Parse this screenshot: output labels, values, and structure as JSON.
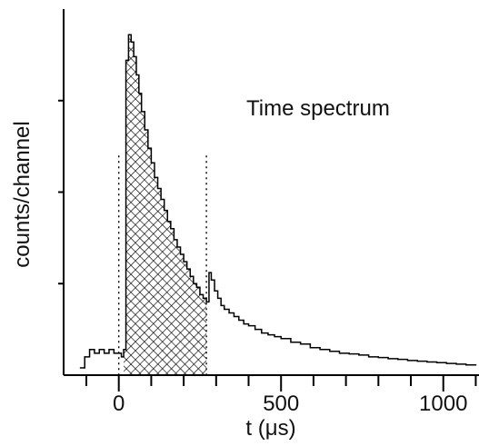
{
  "chart_data": {
    "type": "line",
    "title": "Time spectrum",
    "xlabel": "t (μs)",
    "ylabel": "counts/channel",
    "xlim": [
      -170,
      1110
    ],
    "ylim": [
      0,
      1.0
    ],
    "x_ticks": [
      0,
      500,
      1000
    ],
    "x_tick_labels": [
      "0",
      "500",
      "1000"
    ],
    "y_ticks": [
      0.25,
      0.5,
      0.75
    ],
    "y_tick_labels": [
      "",
      "",
      ""
    ],
    "gate_lines": [
      0,
      270
    ],
    "hatched_region": [
      15,
      270
    ],
    "series": [
      {
        "points": [
          [
            -120,
            0.02
          ],
          [
            -105,
            0.05
          ],
          [
            -90,
            0.07
          ],
          [
            -75,
            0.06
          ],
          [
            -60,
            0.07
          ],
          [
            -45,
            0.06
          ],
          [
            -30,
            0.07
          ],
          [
            -15,
            0.06
          ],
          [
            0,
            0.06
          ],
          [
            8,
            0.05
          ],
          [
            15,
            0.07
          ],
          [
            22,
            0.86
          ],
          [
            30,
            0.93
          ],
          [
            38,
            0.91
          ],
          [
            46,
            0.87
          ],
          [
            54,
            0.82
          ],
          [
            62,
            0.77
          ],
          [
            70,
            0.72
          ],
          [
            80,
            0.67
          ],
          [
            90,
            0.62
          ],
          [
            100,
            0.58
          ],
          [
            110,
            0.54
          ],
          [
            120,
            0.51
          ],
          [
            130,
            0.48
          ],
          [
            140,
            0.45
          ],
          [
            150,
            0.42
          ],
          [
            160,
            0.4
          ],
          [
            170,
            0.37
          ],
          [
            180,
            0.35
          ],
          [
            190,
            0.33
          ],
          [
            200,
            0.31
          ],
          [
            210,
            0.29
          ],
          [
            220,
            0.27
          ],
          [
            230,
            0.25
          ],
          [
            240,
            0.24
          ],
          [
            250,
            0.22
          ],
          [
            260,
            0.21
          ],
          [
            270,
            0.2
          ],
          [
            278,
            0.28
          ],
          [
            285,
            0.26
          ],
          [
            295,
            0.23
          ],
          [
            305,
            0.21
          ],
          [
            315,
            0.19
          ],
          [
            325,
            0.18
          ],
          [
            340,
            0.17
          ],
          [
            355,
            0.16
          ],
          [
            370,
            0.15
          ],
          [
            385,
            0.14
          ],
          [
            400,
            0.135
          ],
          [
            420,
            0.125
          ],
          [
            440,
            0.115
          ],
          [
            460,
            0.11
          ],
          [
            480,
            0.105
          ],
          [
            500,
            0.1
          ],
          [
            530,
            0.09
          ],
          [
            560,
            0.085
          ],
          [
            590,
            0.075
          ],
          [
            620,
            0.07
          ],
          [
            650,
            0.065
          ],
          [
            680,
            0.06
          ],
          [
            710,
            0.058
          ],
          [
            740,
            0.055
          ],
          [
            770,
            0.05
          ],
          [
            800,
            0.048
          ],
          [
            830,
            0.045
          ],
          [
            860,
            0.043
          ],
          [
            890,
            0.04
          ],
          [
            920,
            0.038
          ],
          [
            950,
            0.036
          ],
          [
            980,
            0.034
          ],
          [
            1010,
            0.032
          ],
          [
            1040,
            0.03
          ],
          [
            1070,
            0.028
          ],
          [
            1100,
            0.026
          ]
        ]
      }
    ]
  }
}
